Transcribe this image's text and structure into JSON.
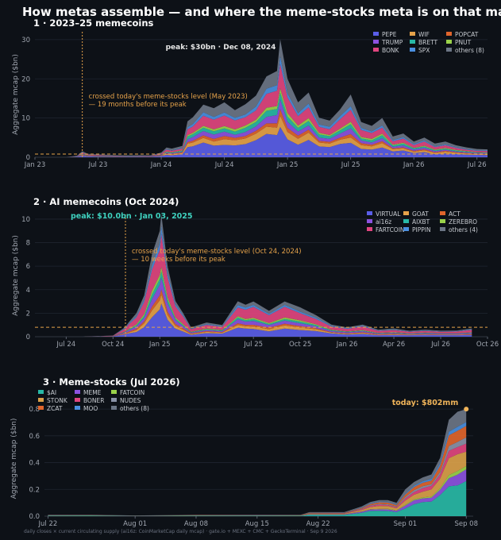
{
  "title": "How metas assemble — and where the meme-stocks meta is on that map",
  "footer": "daily closes × current circulating supply (ai16z: CoinMarketCap daily mcap) · gate.io + MEXC + CMC + GeckoTerminal · Sep 9 2026",
  "chart_data": [
    {
      "type": "area",
      "title": "1 · 2023–25 memecoins",
      "ylabel": "Aggregate mcap ($bn)",
      "ylim": [
        0,
        32
      ],
      "yticks": [
        0,
        10,
        20,
        30
      ],
      "x_ticks": [
        "Jan 23",
        "Jul 23",
        "Jan 24",
        "Jul 24",
        "Jan 25",
        "Jul 25",
        "Jan 26",
        "Jul 26"
      ],
      "peak_label": "peak: $30bn · Dec 08, 2024",
      "annotation": [
        "crossed today's meme-stocks level (May 2023)",
        "— 19 months before its peak"
      ],
      "threshold": 0.8,
      "legend_position": "top-right",
      "series_names": [
        "PEPE",
        "WIF",
        "POPCAT",
        "TRUMP",
        "BRETT",
        "PNUT",
        "BONK",
        "SPX",
        "others (8)"
      ],
      "colors": [
        "#5a5ee8",
        "#e5a24a",
        "#e0652c",
        "#8c52e0",
        "#28b8a6",
        "#9ad24a",
        "#e0457f",
        "#4a8fe0",
        "#6b7585"
      ],
      "x_index_range": [
        0,
        43
      ],
      "x_tick_index": [
        0,
        6,
        12,
        18,
        24,
        30,
        36,
        42
      ],
      "peak_index": 23.3,
      "cross_index": 4.5,
      "x_points": [
        0,
        3,
        4,
        4.5,
        5,
        6,
        7,
        8,
        9,
        10,
        11,
        12,
        12.5,
        13,
        14,
        14.5,
        15,
        16,
        17,
        18,
        19,
        20,
        21,
        22,
        23,
        23.3,
        24,
        25,
        26,
        27,
        28,
        29,
        30,
        31,
        32,
        33,
        34,
        35,
        36,
        37,
        38,
        39,
        40,
        41,
        42,
        43
      ],
      "total": [
        0,
        0,
        0.4,
        1.5,
        0.9,
        0.7,
        0.6,
        0.5,
        0.5,
        0.5,
        0.5,
        1.2,
        2.5,
        2.2,
        2.8,
        9,
        10,
        13,
        12.5,
        14,
        12,
        13.5,
        15,
        20,
        22,
        30,
        20,
        14,
        16,
        10,
        9,
        12,
        16,
        9,
        8,
        10,
        5,
        6,
        4,
        5,
        3.5,
        4,
        3,
        2.5,
        2,
        2
      ],
      "shares": [
        0.26,
        0.1,
        0.05,
        0.08,
        0.07,
        0.04,
        0.18,
        0.06,
        0.16
      ]
    },
    {
      "type": "area",
      "title": "2 · AI memecoins (Oct 2024)",
      "ylabel": "Aggregate mcap ($bn)",
      "ylim": [
        0,
        10.4
      ],
      "yticks": [
        0,
        2,
        4,
        6,
        8,
        10
      ],
      "x_ticks": [
        "Jul 24",
        "Oct 24",
        "Jan 25",
        "Apr 25",
        "Jul 25",
        "Oct 25",
        "Jan 26",
        "Apr 26",
        "Jul 26",
        "Oct 26"
      ],
      "peak_label": "peak: $10.0bn · Jan 03, 2025",
      "annotation": [
        "crossed today's meme-stocks level (Oct 24, 2024)",
        "— 10 weeks before its peak"
      ],
      "threshold": 0.8,
      "legend_position": "top-right",
      "series_names": [
        "VIRTUAL",
        "GOAT",
        "ACT",
        "ai16z",
        "AIXBT",
        "ZEREBRO",
        "FARTCOIN",
        "PIPPIN",
        "others (4)"
      ],
      "colors": [
        "#5a5ee8",
        "#e5a24a",
        "#e0652c",
        "#8c52e0",
        "#28b8a6",
        "#9ad24a",
        "#e0457f",
        "#4a8fe0",
        "#6b7585"
      ],
      "x_index_range": [
        -2,
        27
      ],
      "x_tick_index": [
        0,
        3,
        6,
        9,
        12,
        15,
        18,
        21,
        24,
        27
      ],
      "peak_index": 6.1,
      "cross_index": 3.8,
      "x_points": [
        -1,
        1,
        3,
        3.8,
        4,
        4.5,
        5,
        5.5,
        6,
        6.1,
        6.5,
        7,
        7.5,
        8,
        9,
        10,
        11,
        11.5,
        12,
        13,
        14,
        15,
        16,
        17,
        18,
        19,
        20,
        21,
        22,
        23,
        24,
        25,
        26
      ],
      "total": [
        0,
        0,
        0.1,
        0.8,
        1.2,
        2,
        3.5,
        7,
        9,
        10,
        6,
        3,
        2,
        0.8,
        1.2,
        1,
        3,
        2.6,
        3,
        2.2,
        3,
        2.5,
        1.8,
        1,
        0.8,
        1,
        0.6,
        0.7,
        0.5,
        0.6,
        0.5,
        0.5,
        0.7
      ],
      "shares": [
        0.24,
        0.08,
        0.05,
        0.1,
        0.05,
        0.04,
        0.28,
        0.06,
        0.1
      ]
    },
    {
      "type": "area",
      "title": "3 · Meme-stocks (Jul 2026)",
      "ylabel": "Aggregate mcap ($bn)",
      "ylim": [
        0,
        0.86
      ],
      "yticks": [
        "0.0",
        "0.2",
        "0.4",
        "0.6",
        "0.8"
      ],
      "x_ticks": [
        "Jul 22",
        "Aug 01",
        "Aug 08",
        "Aug 15",
        "Aug 22",
        "Sep 01",
        "Sep 08"
      ],
      "peak_label": "today: $802mm",
      "legend_position": "top-left",
      "series_names": [
        "$AI",
        "MEME",
        "FATCOIN",
        "STONK",
        "BONER",
        "NUDES",
        "ZCAT",
        "MOO",
        "others (8)"
      ],
      "colors": [
        "#28b8a6",
        "#8c52e0",
        "#9ad24a",
        "#d9a04a",
        "#e0457f",
        "#8a93a8",
        "#e0652c",
        "#4a8fe0",
        "#6b7585"
      ],
      "x_index_range": [
        -0.4,
        48.8
      ],
      "x_tick_index": [
        0,
        10,
        17,
        24,
        31,
        41,
        48
      ],
      "x_points": [
        0,
        5,
        10,
        17,
        24,
        29,
        30,
        34,
        36,
        37,
        38,
        39,
        40,
        41,
        42,
        43,
        44,
        45,
        46,
        47,
        48
      ],
      "total": [
        0.01,
        0.01,
        0.005,
        0.01,
        0.01,
        0.01,
        0.03,
        0.03,
        0.07,
        0.1,
        0.12,
        0.12,
        0.1,
        0.2,
        0.25,
        0.28,
        0.3,
        0.42,
        0.72,
        0.78,
        0.8
      ],
      "shares": [
        0.34,
        0.1,
        0.03,
        0.16,
        0.08,
        0.05,
        0.1,
        0.04,
        0.1
      ]
    }
  ]
}
